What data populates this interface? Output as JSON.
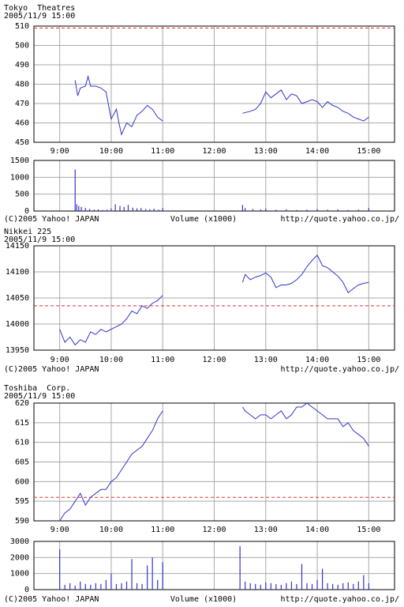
{
  "chart_data": [
    {
      "type": "line",
      "title": "Tokyo  Theatres",
      "subtitle": "2005/11/9 15:00",
      "color": "#3333cc",
      "ref_color": "#dd3333",
      "ref_line": 509,
      "x": [
        9.3,
        9.35,
        9.4,
        9.5,
        9.55,
        9.6,
        9.7,
        9.8,
        9.9,
        10.0,
        10.1,
        10.15,
        10.2,
        10.3,
        10.4,
        10.5,
        10.6,
        10.7,
        10.8,
        10.9,
        11.0,
        12.0,
        12.55,
        12.7,
        12.8,
        12.9,
        13.0,
        13.1,
        13.2,
        13.3,
        13.4,
        13.5,
        13.6,
        13.7,
        13.8,
        13.9,
        14.0,
        14.1,
        14.2,
        14.3,
        14.4,
        14.5,
        14.6,
        14.7,
        14.8,
        14.9,
        15.0
      ],
      "values": [
        482,
        474,
        478,
        479,
        484,
        479,
        479,
        478,
        476,
        462,
        467,
        460,
        454,
        460,
        458,
        464,
        466,
        469,
        467,
        463,
        461,
        null,
        465,
        466,
        467,
        470,
        476,
        473,
        475,
        477,
        472,
        475,
        474,
        470,
        471,
        472,
        471,
        468,
        471,
        469,
        468,
        466,
        465,
        463,
        462,
        461,
        463
      ],
      "xlim": [
        8.5,
        15.5
      ],
      "xticks": [
        {
          "value": 9,
          "label": "9:00"
        },
        {
          "value": 10,
          "label": "10:00"
        },
        {
          "value": 11,
          "label": "11:00"
        },
        {
          "value": 12,
          "label": "12:00"
        },
        {
          "value": 13,
          "label": "13:00"
        },
        {
          "value": 14,
          "label": "14:00"
        },
        {
          "value": 15,
          "label": "15:00"
        }
      ],
      "ylim": [
        450,
        510
      ],
      "yticks": [
        450,
        460,
        470,
        480,
        490,
        500,
        510
      ],
      "volume": {
        "title": "Volume (x1000)",
        "ylim": [
          0,
          1500
        ],
        "yticks": [
          0,
          500,
          1000,
          1500
        ],
        "x": [
          9.3,
          9.33,
          9.37,
          9.42,
          9.5,
          9.58,
          9.67,
          9.75,
          9.83,
          9.92,
          10.0,
          10.08,
          10.17,
          10.25,
          10.33,
          10.42,
          10.5,
          10.58,
          10.67,
          10.75,
          10.83,
          10.92,
          11.0,
          12.55,
          12.6,
          12.75,
          12.9,
          13.0,
          13.2,
          13.4,
          13.6,
          13.8,
          14.0,
          14.2,
          14.4,
          14.6,
          14.8,
          15.0
        ],
        "values": [
          1230,
          200,
          150,
          120,
          90,
          60,
          40,
          50,
          30,
          40,
          80,
          200,
          150,
          120,
          180,
          100,
          80,
          90,
          60,
          50,
          70,
          40,
          90,
          180,
          90,
          60,
          50,
          70,
          40,
          50,
          30,
          40,
          60,
          40,
          50,
          30,
          40,
          90
        ]
      },
      "copyright": "(C)2005 Yahoo! JAPAN",
      "source": "http://quote.yahoo.co.jp/"
    },
    {
      "type": "line",
      "title": "Nikkei 225",
      "subtitle": "2005/11/9 15:00",
      "color": "#3333cc",
      "ref_color": "#dd3333",
      "ref_line": 14035,
      "x": [
        9.0,
        9.1,
        9.2,
        9.3,
        9.4,
        9.5,
        9.6,
        9.7,
        9.8,
        9.9,
        10.0,
        10.1,
        10.2,
        10.3,
        10.4,
        10.5,
        10.6,
        10.7,
        10.8,
        10.9,
        11.0,
        12.0,
        12.55,
        12.6,
        12.7,
        12.8,
        12.9,
        13.0,
        13.1,
        13.2,
        13.3,
        13.4,
        13.5,
        13.6,
        13.7,
        13.8,
        13.9,
        14.0,
        14.1,
        14.2,
        14.3,
        14.4,
        14.5,
        14.6,
        14.7,
        14.8,
        14.9,
        15.0
      ],
      "values": [
        13990,
        13965,
        13975,
        13960,
        13970,
        13965,
        13985,
        13980,
        13990,
        13985,
        13990,
        13995,
        14000,
        14010,
        14025,
        14020,
        14035,
        14030,
        14040,
        14045,
        14055,
        null,
        14080,
        14095,
        14085,
        14090,
        14093,
        14098,
        14090,
        14070,
        14075,
        14075,
        14078,
        14085,
        14095,
        14110,
        14122,
        14132,
        14112,
        14108,
        14100,
        14092,
        14080,
        14060,
        14068,
        14075,
        14078,
        14080
      ],
      "xlim": [
        8.5,
        15.5
      ],
      "xticks": [
        {
          "value": 9,
          "label": "9:00"
        },
        {
          "value": 10,
          "label": "10:00"
        },
        {
          "value": 11,
          "label": "11:00"
        },
        {
          "value": 12,
          "label": "12:00"
        },
        {
          "value": 13,
          "label": "13:00"
        },
        {
          "value": 14,
          "label": "14:00"
        },
        {
          "value": 15,
          "label": "15:00"
        }
      ],
      "ylim": [
        13950,
        14150
      ],
      "yticks": [
        13950,
        14000,
        14050,
        14100,
        14150
      ],
      "copyright": "(C)2005 Yahoo! JAPAN",
      "source": "http://quote.yahoo.co.jp/"
    },
    {
      "type": "line",
      "title": "Toshiba  Corp.",
      "subtitle": "2005/11/9 15:00",
      "color": "#3333cc",
      "ref_color": "#dd3333",
      "ref_line": 596,
      "x": [
        9.0,
        9.1,
        9.2,
        9.3,
        9.4,
        9.5,
        9.6,
        9.7,
        9.8,
        9.9,
        10.0,
        10.1,
        10.2,
        10.3,
        10.4,
        10.5,
        10.6,
        10.7,
        10.8,
        10.9,
        11.0,
        12.0,
        12.55,
        12.6,
        12.7,
        12.8,
        12.9,
        13.0,
        13.1,
        13.2,
        13.3,
        13.4,
        13.5,
        13.6,
        13.7,
        13.8,
        13.9,
        14.0,
        14.1,
        14.2,
        14.3,
        14.4,
        14.5,
        14.6,
        14.7,
        14.8,
        14.9,
        15.0
      ],
      "values": [
        590,
        592,
        593,
        595,
        597,
        594,
        596,
        597,
        598,
        598,
        600,
        601,
        603,
        605,
        607,
        608,
        609,
        611,
        613,
        616,
        618,
        null,
        619,
        618,
        617,
        616,
        617,
        617,
        616,
        617,
        618,
        616,
        617,
        619,
        619,
        620,
        619,
        618,
        617,
        616,
        616,
        616,
        614,
        615,
        613,
        612,
        611,
        609
      ],
      "xlim": [
        8.5,
        15.5
      ],
      "xticks": [
        {
          "value": 9,
          "label": "9:00"
        },
        {
          "value": 10,
          "label": "10:00"
        },
        {
          "value": 11,
          "label": "11:00"
        },
        {
          "value": 12,
          "label": "12:00"
        },
        {
          "value": 13,
          "label": "13:00"
        },
        {
          "value": 14,
          "label": "14:00"
        },
        {
          "value": 15,
          "label": "15:00"
        }
      ],
      "ylim": [
        590,
        620
      ],
      "yticks": [
        590,
        595,
        600,
        605,
        610,
        615,
        620
      ],
      "volume": {
        "title": "Volume (x1000)",
        "ylim": [
          0,
          3000
        ],
        "yticks": [
          0,
          1000,
          2000,
          3000
        ],
        "x": [
          9.0,
          9.1,
          9.2,
          9.3,
          9.4,
          9.5,
          9.6,
          9.7,
          9.8,
          9.9,
          10.0,
          10.1,
          10.2,
          10.3,
          10.4,
          10.5,
          10.6,
          10.7,
          10.8,
          10.9,
          11.0,
          12.5,
          12.6,
          12.7,
          12.8,
          12.9,
          13.0,
          13.1,
          13.2,
          13.3,
          13.4,
          13.5,
          13.6,
          13.7,
          13.8,
          13.9,
          14.0,
          14.1,
          14.2,
          14.3,
          14.4,
          14.5,
          14.6,
          14.7,
          14.8,
          14.9,
          15.0
        ],
        "values": [
          2500,
          300,
          400,
          250,
          500,
          350,
          300,
          400,
          350,
          600,
          1000,
          350,
          400,
          500,
          1900,
          400,
          350,
          1500,
          2000,
          600,
          1700,
          2700,
          500,
          400,
          350,
          300,
          450,
          400,
          350,
          300,
          400,
          500,
          350,
          1600,
          400,
          350,
          600,
          1300,
          400,
          350,
          300,
          400,
          450,
          350,
          500,
          900,
          400
        ]
      },
      "copyright": "(C)2005 Yahoo! JAPAN",
      "source": "http://quote.yahoo.co.jp/"
    }
  ]
}
